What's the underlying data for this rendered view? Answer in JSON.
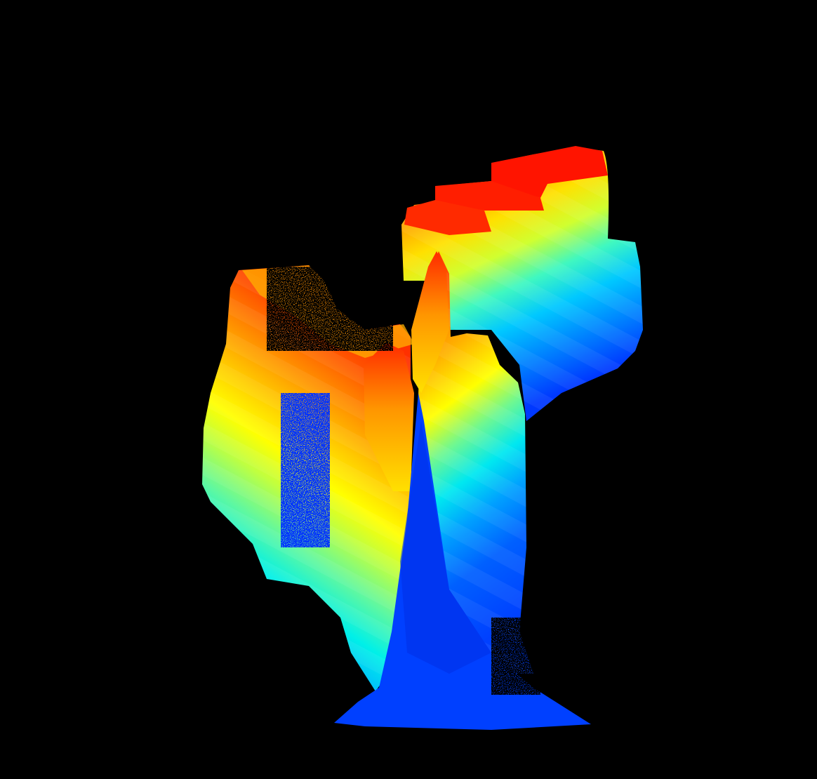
{
  "scene": {
    "kind": "colored 3D point-cloud / depth render",
    "background": "#000000",
    "colormap": "jet",
    "colormap_stops": [
      "#0030ff",
      "#0070ff",
      "#00b4ff",
      "#00f0e8",
      "#60f8a0",
      "#c0ff40",
      "#ffff00",
      "#ffc800",
      "#ff8c00",
      "#ff5000",
      "#ff1800"
    ]
  }
}
